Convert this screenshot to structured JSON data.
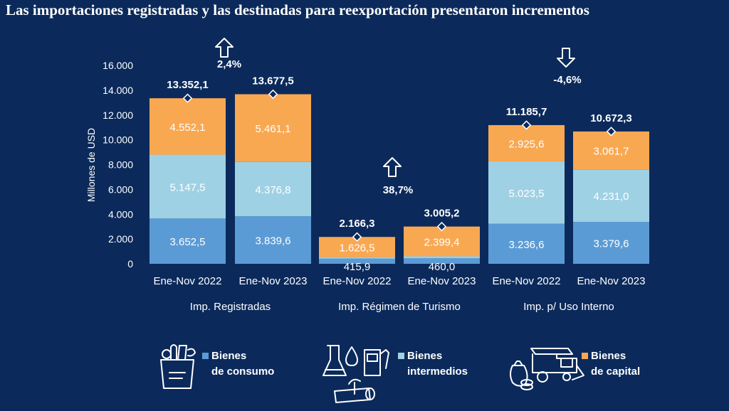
{
  "title": "Las importaciones registradas y las destinadas para reexportación presentaron incrementos",
  "colors": {
    "background": "#0b2a5b",
    "consumo": "#5b9bd5",
    "intermedios": "#9fd1e4",
    "capital": "#f9a852"
  },
  "chart_data": {
    "type": "bar",
    "stacked": true,
    "ylabel": "Millones de USD",
    "ylim": [
      0,
      16000
    ],
    "yticks": [
      "0",
      "2.000",
      "4.000",
      "6.000",
      "8.000",
      "10.000",
      "12.000",
      "14.000",
      "16.000"
    ],
    "groups": [
      {
        "name": "Imp. Registradas",
        "change": "2,4%",
        "direction": "up",
        "bars": [
          {
            "category": "Ene-Nov 2022",
            "consumo": 3652.5,
            "intermedios": 5147.5,
            "capital": 4552.1,
            "total": 13352.1,
            "labels": {
              "consumo": "3.652,5",
              "intermedios": "5.147,5",
              "capital": "4.552,1",
              "total": "13.352,1"
            }
          },
          {
            "category": "Ene-Nov 2023",
            "consumo": 3839.6,
            "intermedios": 4376.8,
            "capital": 5461.1,
            "total": 13677.5,
            "labels": {
              "consumo": "3.839,6",
              "intermedios": "4.376,8",
              "capital": "5.461,1",
              "total": "13.677,5"
            }
          }
        ]
      },
      {
        "name": "Imp. Régimen de Turismo",
        "change": "38,7%",
        "direction": "up",
        "bars": [
          {
            "category": "Ene-Nov 2022",
            "consumo": 415.9,
            "intermedios": 123.9,
            "capital": 1626.5,
            "total": 2166.3,
            "labels": {
              "consumo": "415,9",
              "capital": "1.626,5",
              "total": "2.166,3"
            }
          },
          {
            "category": "Ene-Nov 2023",
            "consumo": 460.0,
            "intermedios": 145.8,
            "capital": 2399.4,
            "total": 3005.2,
            "labels": {
              "consumo": "460,0",
              "capital": "2.399,4",
              "total": "3.005,2"
            }
          }
        ]
      },
      {
        "name": "Imp. p/ Uso Interno",
        "change": "-4,6%",
        "direction": "down",
        "bars": [
          {
            "category": "Ene-Nov 2022",
            "consumo": 3236.6,
            "intermedios": 5023.5,
            "capital": 2925.6,
            "total": 11185.7,
            "labels": {
              "consumo": "3.236,6",
              "intermedios": "5.023,5",
              "capital": "2.925,6",
              "total": "11.185,7"
            }
          },
          {
            "category": "Ene-Nov 2023",
            "consumo": 3379.6,
            "intermedios": 4231.0,
            "capital": 3061.7,
            "total": 10672.3,
            "labels": {
              "consumo": "3.379,6",
              "intermedios": "4.231,0",
              "capital": "3.061,7",
              "total": "10.672,3"
            }
          }
        ]
      }
    ],
    "legend": [
      {
        "key": "consumo",
        "line1": "Bienes",
        "line2": "de consumo",
        "icon": "grocery-bag-icon"
      },
      {
        "key": "intermedios",
        "line1": "Bienes",
        "line2": "intermedios",
        "icon": "chemistry-fuel-icon"
      },
      {
        "key": "capital",
        "line1": "Bienes",
        "line2": "de capital",
        "icon": "harvester-icon"
      }
    ]
  }
}
